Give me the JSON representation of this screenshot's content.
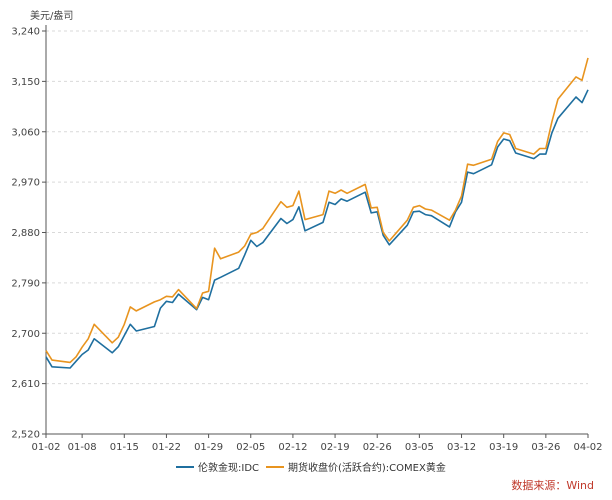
{
  "chart_data": {
    "type": "line",
    "y_unit_label": "美元/盎司",
    "ylim": [
      2520,
      3240
    ],
    "yticks": [
      2520,
      2610,
      2700,
      2790,
      2880,
      2970,
      3060,
      3150,
      3240
    ],
    "ytick_labels": [
      "2,520",
      "2,610",
      "2,700",
      "2,790",
      "2,880",
      "2,970",
      "3,060",
      "3,150",
      "3,240"
    ],
    "grid": "horizontal-dashed",
    "xlim": [
      "2025-01-02",
      "2025-04-02"
    ],
    "xtick_labels": [
      "01-02",
      "01-08",
      "01-15",
      "01-22",
      "01-29",
      "02-05",
      "02-12",
      "02-19",
      "02-26",
      "03-05",
      "03-12",
      "03-19",
      "03-26",
      "04-02"
    ],
    "legend_position": "bottom-center",
    "series": [
      {
        "name": "伦敦金现:IDC",
        "color": "#1f6f9f",
        "points": [
          [
            "2025-01-02",
            2658
          ],
          [
            "2025-01-03",
            2640
          ],
          [
            "2025-01-06",
            2638
          ],
          [
            "2025-01-07",
            2650
          ],
          [
            "2025-01-08",
            2662
          ],
          [
            "2025-01-09",
            2670
          ],
          [
            "2025-01-10",
            2690
          ],
          [
            "2025-01-13",
            2665
          ],
          [
            "2025-01-14",
            2676
          ],
          [
            "2025-01-15",
            2696
          ],
          [
            "2025-01-16",
            2716
          ],
          [
            "2025-01-17",
            2704
          ],
          [
            "2025-01-20",
            2712
          ],
          [
            "2025-01-21",
            2745
          ],
          [
            "2025-01-22",
            2757
          ],
          [
            "2025-01-23",
            2755
          ],
          [
            "2025-01-24",
            2770
          ],
          [
            "2025-01-27",
            2742
          ],
          [
            "2025-01-28",
            2764
          ],
          [
            "2025-01-29",
            2760
          ],
          [
            "2025-01-30",
            2795
          ],
          [
            "2025-01-31",
            2800
          ],
          [
            "2025-02-03",
            2816
          ],
          [
            "2025-02-04",
            2840
          ],
          [
            "2025-02-05",
            2866
          ],
          [
            "2025-02-06",
            2855
          ],
          [
            "2025-02-07",
            2862
          ],
          [
            "2025-02-10",
            2905
          ],
          [
            "2025-02-11",
            2896
          ],
          [
            "2025-02-12",
            2903
          ],
          [
            "2025-02-13",
            2926
          ],
          [
            "2025-02-14",
            2883
          ],
          [
            "2025-02-17",
            2898
          ],
          [
            "2025-02-18",
            2934
          ],
          [
            "2025-02-19",
            2930
          ],
          [
            "2025-02-20",
            2940
          ],
          [
            "2025-02-21",
            2936
          ],
          [
            "2025-02-24",
            2952
          ],
          [
            "2025-02-25",
            2915
          ],
          [
            "2025-02-26",
            2917
          ],
          [
            "2025-02-27",
            2875
          ],
          [
            "2025-02-28",
            2858
          ],
          [
            "2025-03-03",
            2893
          ],
          [
            "2025-03-04",
            2917
          ],
          [
            "2025-03-05",
            2918
          ],
          [
            "2025-03-06",
            2912
          ],
          [
            "2025-03-07",
            2910
          ],
          [
            "2025-03-10",
            2890
          ],
          [
            "2025-03-11",
            2917
          ],
          [
            "2025-03-12",
            2934
          ],
          [
            "2025-03-13",
            2988
          ],
          [
            "2025-03-14",
            2985
          ],
          [
            "2025-03-17",
            3001
          ],
          [
            "2025-03-18",
            3033
          ],
          [
            "2025-03-19",
            3047
          ],
          [
            "2025-03-20",
            3044
          ],
          [
            "2025-03-21",
            3022
          ],
          [
            "2025-03-24",
            3012
          ],
          [
            "2025-03-25",
            3020
          ],
          [
            "2025-03-26",
            3020
          ],
          [
            "2025-03-27",
            3058
          ],
          [
            "2025-03-28",
            3084
          ],
          [
            "2025-03-31",
            3122
          ],
          [
            "2025-04-01",
            3112
          ],
          [
            "2025-04-02",
            3135
          ]
        ]
      },
      {
        "name": "期货收盘价(活跃合约):COMEX黄金",
        "color": "#e8941f",
        "points": [
          [
            "2025-01-02",
            2669
          ],
          [
            "2025-01-03",
            2652
          ],
          [
            "2025-01-06",
            2648
          ],
          [
            "2025-01-07",
            2658
          ],
          [
            "2025-01-08",
            2675
          ],
          [
            "2025-01-09",
            2690
          ],
          [
            "2025-01-10",
            2716
          ],
          [
            "2025-01-13",
            2683
          ],
          [
            "2025-01-14",
            2693
          ],
          [
            "2025-01-15",
            2716
          ],
          [
            "2025-01-16",
            2747
          ],
          [
            "2025-01-17",
            2740
          ],
          [
            "2025-01-20",
            2756
          ],
          [
            "2025-01-21",
            2760
          ],
          [
            "2025-01-22",
            2766
          ],
          [
            "2025-01-23",
            2765
          ],
          [
            "2025-01-24",
            2778
          ],
          [
            "2025-01-27",
            2744
          ],
          [
            "2025-01-28",
            2772
          ],
          [
            "2025-01-29",
            2775
          ],
          [
            "2025-01-30",
            2852
          ],
          [
            "2025-01-31",
            2833
          ],
          [
            "2025-02-03",
            2845
          ],
          [
            "2025-02-04",
            2856
          ],
          [
            "2025-02-05",
            2877
          ],
          [
            "2025-02-06",
            2880
          ],
          [
            "2025-02-07",
            2887
          ],
          [
            "2025-02-10",
            2935
          ],
          [
            "2025-02-11",
            2925
          ],
          [
            "2025-02-12",
            2928
          ],
          [
            "2025-02-13",
            2954
          ],
          [
            "2025-02-14",
            2903
          ],
          [
            "2025-02-17",
            2912
          ],
          [
            "2025-02-18",
            2954
          ],
          [
            "2025-02-19",
            2950
          ],
          [
            "2025-02-20",
            2956
          ],
          [
            "2025-02-21",
            2950
          ],
          [
            "2025-02-24",
            2966
          ],
          [
            "2025-02-25",
            2924
          ],
          [
            "2025-02-26",
            2925
          ],
          [
            "2025-02-27",
            2880
          ],
          [
            "2025-02-28",
            2865
          ],
          [
            "2025-03-03",
            2902
          ],
          [
            "2025-03-04",
            2925
          ],
          [
            "2025-03-05",
            2928
          ],
          [
            "2025-03-06",
            2922
          ],
          [
            "2025-03-07",
            2920
          ],
          [
            "2025-03-10",
            2902
          ],
          [
            "2025-03-11",
            2920
          ],
          [
            "2025-03-12",
            2945
          ],
          [
            "2025-03-13",
            3002
          ],
          [
            "2025-03-14",
            3000
          ],
          [
            "2025-03-17",
            3011
          ],
          [
            "2025-03-18",
            3043
          ],
          [
            "2025-03-19",
            3058
          ],
          [
            "2025-03-20",
            3055
          ],
          [
            "2025-03-21",
            3030
          ],
          [
            "2025-03-24",
            3020
          ],
          [
            "2025-03-25",
            3030
          ],
          [
            "2025-03-26",
            3030
          ],
          [
            "2025-03-27",
            3078
          ],
          [
            "2025-03-28",
            3118
          ],
          [
            "2025-03-31",
            3158
          ],
          [
            "2025-04-01",
            3152
          ],
          [
            "2025-04-02",
            3192
          ]
        ]
      }
    ]
  },
  "source_label": "数据来源：Wind"
}
